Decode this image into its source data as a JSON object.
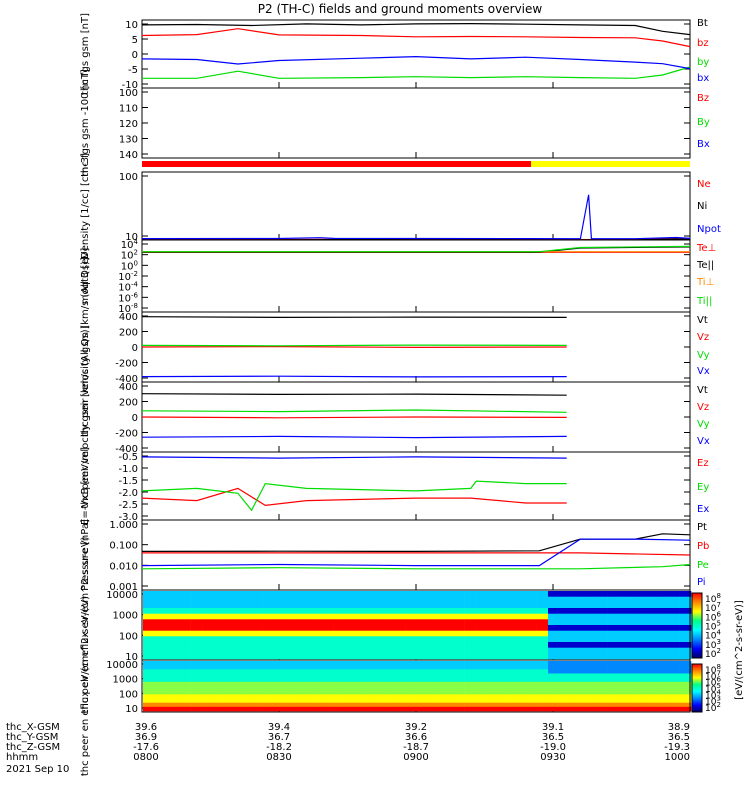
{
  "title": "P2 (TH-C) fields and ground moments overview",
  "date_label": "2021 Sep 10",
  "colors": {
    "black": "#000000",
    "red": "#ff0000",
    "green": "#00dd00",
    "blue": "#0000ff",
    "yellow": "#ffff00",
    "cyan": "#00ffff",
    "orange": "#ff8800"
  },
  "ephemeris": {
    "row_labels": [
      "thc_X-GSM",
      "thc_Y-GSM",
      "thc_Z-GSM",
      "hhmm"
    ],
    "columns": [
      {
        "x": "39.6",
        "y": "36.9",
        "z": "-17.6",
        "hhmm": "0800"
      },
      {
        "x": "39.4",
        "y": "36.7",
        "z": "-18.2",
        "hhmm": "0830"
      },
      {
        "x": "39.2",
        "y": "36.6",
        "z": "-18.7",
        "hhmm": "0900"
      },
      {
        "x": "39.1",
        "y": "36.5",
        "z": "-19.0",
        "hhmm": "0930"
      },
      {
        "x": "38.9",
        "y": "36.5",
        "z": "-19.3",
        "hhmm": "1000"
      }
    ]
  },
  "colorbar": {
    "label": "[eV/(cm^2-s-sr-eV)]",
    "ticks": [
      "10^8",
      "10^7",
      "10^6",
      "10^5",
      "10^4",
      "10^3",
      "10^2"
    ]
  },
  "chart_data": [
    {
      "type": "line",
      "ylabel": "thc fgs gsm [nT]",
      "yticks": [
        "10",
        "5",
        "0",
        "-5",
        "-10"
      ],
      "ylim": [
        -10,
        11
      ],
      "x_range_hours": [
        8,
        10
      ],
      "series": [
        {
          "name": "Bt",
          "color": "black",
          "x": [
            8.0,
            8.2,
            8.4,
            8.6,
            8.8,
            9.0,
            9.2,
            9.4,
            9.6,
            9.8,
            9.9,
            10.0
          ],
          "y": [
            9.5,
            9.6,
            9.3,
            9.8,
            9.5,
            9.8,
            9.9,
            9.7,
            9.5,
            9.3,
            7.5,
            6.5
          ]
        },
        {
          "name": "bz",
          "color": "red",
          "x": [
            8.0,
            8.2,
            8.35,
            8.5,
            8.8,
            9.0,
            9.2,
            9.4,
            9.6,
            9.8,
            9.9,
            10.0
          ],
          "y": [
            6.2,
            6.5,
            8.3,
            6.4,
            6.2,
            5.8,
            5.9,
            5.8,
            5.6,
            5.5,
            4.5,
            2.8
          ]
        },
        {
          "name": "by",
          "color": "green",
          "x": [
            8.0,
            8.2,
            8.35,
            8.5,
            8.8,
            9.0,
            9.2,
            9.4,
            9.6,
            9.8,
            9.9,
            10.0
          ],
          "y": [
            -7.0,
            -7.0,
            -4.8,
            -7.0,
            -6.8,
            -6.5,
            -6.8,
            -6.5,
            -6.8,
            -7.0,
            -6.0,
            -3.5
          ]
        },
        {
          "name": "bx",
          "color": "blue",
          "x": [
            8.0,
            8.2,
            8.35,
            8.5,
            8.8,
            9.0,
            9.2,
            9.4,
            9.6,
            9.8,
            9.9,
            10.0
          ],
          "y": [
            -1.0,
            -1.2,
            -2.6,
            -1.5,
            -0.8,
            -0.3,
            -1.0,
            -0.5,
            -1.2,
            -2.0,
            -2.5,
            -4.0
          ]
        }
      ]
    },
    {
      "type": "line",
      "ylabel": "thc fgs gsm -100 [nT]",
      "yticks": [
        "100",
        "110",
        "120",
        "130",
        "140"
      ],
      "ylim": [
        100,
        148
      ],
      "series": [
        {
          "name": "Bz",
          "color": "red",
          "x": [],
          "y": []
        },
        {
          "name": "By",
          "color": "green",
          "x": [],
          "y": []
        },
        {
          "name": "Bx",
          "color": "blue",
          "x": [],
          "y": []
        }
      ]
    },
    {
      "type": "line",
      "ylabel": "Density [1/cc] [cm-3]",
      "yticks": [
        "100",
        "10"
      ],
      "ylim": [
        2,
        300
      ],
      "scale": "log",
      "series": [
        {
          "name": "Ne",
          "color": "red",
          "x": [
            8.0,
            8.5,
            8.7,
            9.0,
            9.4,
            9.6,
            9.62,
            9.64,
            9.8,
            9.95,
            10.0
          ],
          "y": [
            4.0,
            4.1,
            5.0,
            4.3,
            4.0,
            4.0,
            3.8,
            4.0,
            3.9,
            8.0,
            5.0
          ]
        },
        {
          "name": "Ni",
          "color": "black",
          "x": [
            8.0,
            8.5,
            8.7,
            9.0,
            9.4,
            9.5,
            9.55,
            9.8,
            9.95,
            10.0
          ],
          "y": [
            2.8,
            3.0,
            3.6,
            3.1,
            3.0,
            3.0,
            2.6,
            2.7,
            6.5,
            4.5
          ]
        },
        {
          "name": "Npot",
          "color": "blue",
          "x": [
            8.0,
            8.5,
            8.65,
            8.7,
            9.0,
            9.4,
            9.6,
            9.63,
            9.64,
            9.66,
            9.8,
            9.95,
            10.0
          ],
          "y": [
            8.0,
            8.5,
            12.0,
            9.0,
            8.5,
            8.0,
            7.8,
            200,
            8.0,
            7.5,
            7.5,
            13,
            9.0
          ]
        }
      ]
    },
    {
      "type": "line",
      "ylabel": "moqt3 [eV]",
      "yticks": [
        "10^4",
        "10^2",
        "10^0",
        "10^-2",
        "10^-4",
        "10^-6",
        "10^-8"
      ],
      "ylim": [
        -9,
        4.5
      ],
      "scale": "log10",
      "series": [
        {
          "name": "Te⊥",
          "color": "red",
          "x": [
            8.0,
            10.0
          ],
          "y": [
            2.2,
            2.2
          ]
        },
        {
          "name": "Te||",
          "color": "black",
          "x": [
            8.0,
            9.45,
            9.6,
            10.0
          ],
          "y": [
            2.2,
            2.2,
            3.0,
            3.2
          ]
        },
        {
          "name": "Ti⊥",
          "color": "orange",
          "x": [
            8.0,
            10.0
          ],
          "y": [
            2.3,
            2.3
          ]
        },
        {
          "name": "Ti||",
          "color": "green",
          "x": [
            8.0,
            9.45,
            9.6,
            10.0
          ],
          "y": [
            2.3,
            2.3,
            3.1,
            3.3
          ]
        }
      ]
    },
    {
      "type": "line",
      "ylabel": "thc peir velocity gsm [km/s (All Qs)]",
      "yticks": [
        "400",
        "200",
        "0",
        "-200",
        "-400"
      ],
      "ylim": [
        -450,
        450
      ],
      "series": [
        {
          "name": "Vt",
          "color": "black",
          "x": [
            8.0,
            8.5,
            9.0,
            9.55
          ],
          "y": [
            390,
            380,
            385,
            380
          ]
        },
        {
          "name": "Vz",
          "color": "red",
          "x": [
            8.0,
            8.5,
            9.0,
            9.55
          ],
          "y": [
            0,
            5,
            -5,
            0
          ]
        },
        {
          "name": "Vy",
          "color": "green",
          "x": [
            8.0,
            8.5,
            9.0,
            9.55
          ],
          "y": [
            20,
            15,
            25,
            20
          ]
        },
        {
          "name": "Vx",
          "color": "blue",
          "x": [
            8.0,
            8.5,
            9.0,
            9.55
          ],
          "y": [
            -380,
            -375,
            -385,
            -380
          ]
        }
      ]
    },
    {
      "type": "line",
      "ylabel": "thc peer velocity gsm [km/s (All Qs)]",
      "yticks": [
        "400",
        "200",
        "0",
        "-200",
        "-400"
      ],
      "ylim": [
        -450,
        450
      ],
      "series": [
        {
          "name": "Vt",
          "color": "black",
          "x": [
            8.0,
            8.5,
            9.0,
            9.55
          ],
          "y": [
            300,
            290,
            295,
            280
          ]
        },
        {
          "name": "Vz",
          "color": "red",
          "x": [
            8.0,
            8.5,
            9.0,
            9.55
          ],
          "y": [
            0,
            -10,
            0,
            -5
          ]
        },
        {
          "name": "Vy",
          "color": "green",
          "x": [
            8.0,
            8.5,
            9.0,
            9.55
          ],
          "y": [
            80,
            70,
            90,
            60
          ]
        },
        {
          "name": "Vx",
          "color": "blue",
          "x": [
            8.0,
            8.5,
            9.0,
            9.55
          ],
          "y": [
            -260,
            -250,
            -265,
            -250
          ]
        }
      ]
    },
    {
      "type": "line",
      "ylabel": "E=-VxB [mV/m]",
      "yticks": [
        "-0.5",
        "-1.0",
        "-1.5",
        "-2.0",
        "-2.5",
        "-3.0"
      ],
      "ylim": [
        -3.2,
        -0.4
      ],
      "series": [
        {
          "name": "Ez",
          "color": "red",
          "x": [
            8.0,
            8.2,
            8.35,
            8.45,
            8.6,
            9.0,
            9.2,
            9.4,
            9.55
          ],
          "y": [
            -2.3,
            -2.4,
            -1.9,
            -2.6,
            -2.4,
            -2.3,
            -2.3,
            -2.5,
            -2.5
          ]
        },
        {
          "name": "Ey",
          "color": "green",
          "x": [
            8.0,
            8.2,
            8.35,
            8.4,
            8.45,
            8.6,
            9.0,
            9.2,
            9.22,
            9.4,
            9.55
          ],
          "y": [
            -2.0,
            -1.9,
            -2.1,
            -2.8,
            -1.7,
            -1.9,
            -2.0,
            -1.9,
            -1.6,
            -1.7,
            -1.7
          ]
        },
        {
          "name": "Ex",
          "color": "blue",
          "x": [
            8.0,
            8.5,
            9.0,
            9.55
          ],
          "y": [
            -0.6,
            -0.65,
            -0.6,
            -0.65
          ]
        }
      ]
    },
    {
      "type": "line",
      "ylabel": "Pressure [nPa]",
      "yticks": [
        "1.000",
        "0.100",
        "0.010",
        "0.001"
      ],
      "ylim": [
        -3.2,
        0.1
      ],
      "scale": "log10",
      "series": [
        {
          "name": "Pt",
          "color": "black",
          "x": [
            8.0,
            8.5,
            9.0,
            9.45,
            9.6,
            9.8,
            9.9,
            10.0
          ],
          "y": [
            -1.38,
            -1.37,
            -1.38,
            -1.35,
            -0.8,
            -0.8,
            -0.55,
            -0.6
          ]
        },
        {
          "name": "Pb",
          "color": "red",
          "x": [
            8.0,
            8.5,
            9.0,
            9.45,
            9.6,
            10.0
          ],
          "y": [
            -1.45,
            -1.45,
            -1.45,
            -1.45,
            -1.45,
            -1.55
          ]
        },
        {
          "name": "Pe",
          "color": "green",
          "x": [
            8.0,
            8.5,
            9.0,
            9.45,
            9.6,
            9.9,
            10.0
          ],
          "y": [
            -2.2,
            -2.15,
            -2.2,
            -2.2,
            -2.2,
            -2.1,
            -2.0
          ]
        },
        {
          "name": "Pi",
          "color": "blue",
          "x": [
            8.0,
            8.5,
            9.0,
            9.45,
            9.6,
            9.8,
            10.0
          ],
          "y": [
            -2.05,
            -2.0,
            -2.05,
            -2.05,
            -0.8,
            -0.8,
            -0.85
          ]
        }
      ]
    },
    {
      "type": "heatmap",
      "ylabel": "thc peir en eflux eV/(cm^2-s-sr-eV)",
      "yticks": [
        "10000",
        "1000",
        "100",
        "10"
      ],
      "ylim": [
        5,
        20000
      ],
      "scale": "log"
    },
    {
      "type": "heatmap",
      "ylabel": "thc peer en eflux eV/(cm^2-s-sr-eV)",
      "yticks": [
        "10000",
        "1000",
        "100",
        "10"
      ],
      "ylim": [
        5,
        20000
      ],
      "scale": "log"
    }
  ]
}
